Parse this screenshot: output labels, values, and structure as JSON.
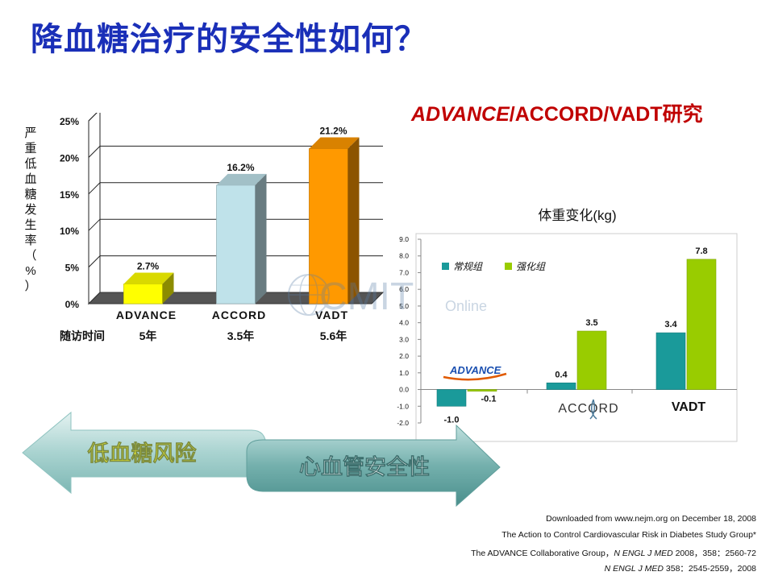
{
  "title": "降血糖治疗的安全性如何？",
  "subtitle_italic": "ADVANCE",
  "subtitle_rest": "/ACCORD/VADT研究",
  "colors": {
    "title": "#1a2fb8",
    "subtitle": "#c00000"
  },
  "chart_data": [
    {
      "type": "bar",
      "ylabel": "严重低血糖发生率（%）",
      "categories": [
        "ADVANCE",
        "ACCORD",
        "VADT"
      ],
      "values": [
        2.7,
        16.2,
        21.2
      ],
      "data_labels": [
        "2.7%",
        "16.2%",
        "21.2%"
      ],
      "bar_colors": [
        "#ffff00",
        "#bfe2ea",
        "#ff9900"
      ],
      "ylim": [
        0,
        25
      ],
      "yticks": [
        "0%",
        "5%",
        "10%",
        "15%",
        "20%",
        "25%"
      ],
      "grid": true,
      "followup_label": "随访时间",
      "followup": [
        "5年",
        "3.5年",
        "5.6年"
      ]
    },
    {
      "type": "bar",
      "title": "体重变化(kg)",
      "categories": [
        "ADVANCE",
        "ACCORD",
        "VADT"
      ],
      "series": [
        {
          "name": "常规组",
          "color": "#1a9a9a",
          "values": [
            -1.0,
            0.4,
            3.4
          ],
          "labels": [
            "-1.0",
            "0.4",
            "3.4"
          ]
        },
        {
          "name": "强化组",
          "color": "#99cc00",
          "values": [
            -0.1,
            3.5,
            7.8
          ],
          "labels": [
            "-0.1",
            "3.5",
            "7.8"
          ]
        }
      ],
      "ylim": [
        -2.0,
        9.0
      ],
      "yticks": [
        "-2.0",
        "-1.0",
        "0.0",
        "1.0",
        "2.0",
        "3.0",
        "4.0",
        "5.0",
        "6.0",
        "7.0",
        "8.0",
        "9.0"
      ],
      "legend": "top-left",
      "logo_text": {
        "advance": "ADVANCE",
        "accord": "ACCORD",
        "vadt": "VADT"
      }
    }
  ],
  "arrow": {
    "left_label": "低血糖风险",
    "right_label": "心血管安全性"
  },
  "watermark": {
    "main": "CMIT",
    "sub": "Online"
  },
  "footer": {
    "line1": "Downloaded from www.nejm.org on December 18, 2008",
    "line2": "The Action to Control Cardiovascular Risk in Diabetes Study Group*",
    "line3_pre": "The ADVANCE Collaborative Group，",
    "line3_it": "N ENGL J MED",
    "line3_post": " 2008，358：2560-72",
    "line4_it": "N ENGL J MED",
    "line4_post": " 358：2545-2559，2008"
  }
}
